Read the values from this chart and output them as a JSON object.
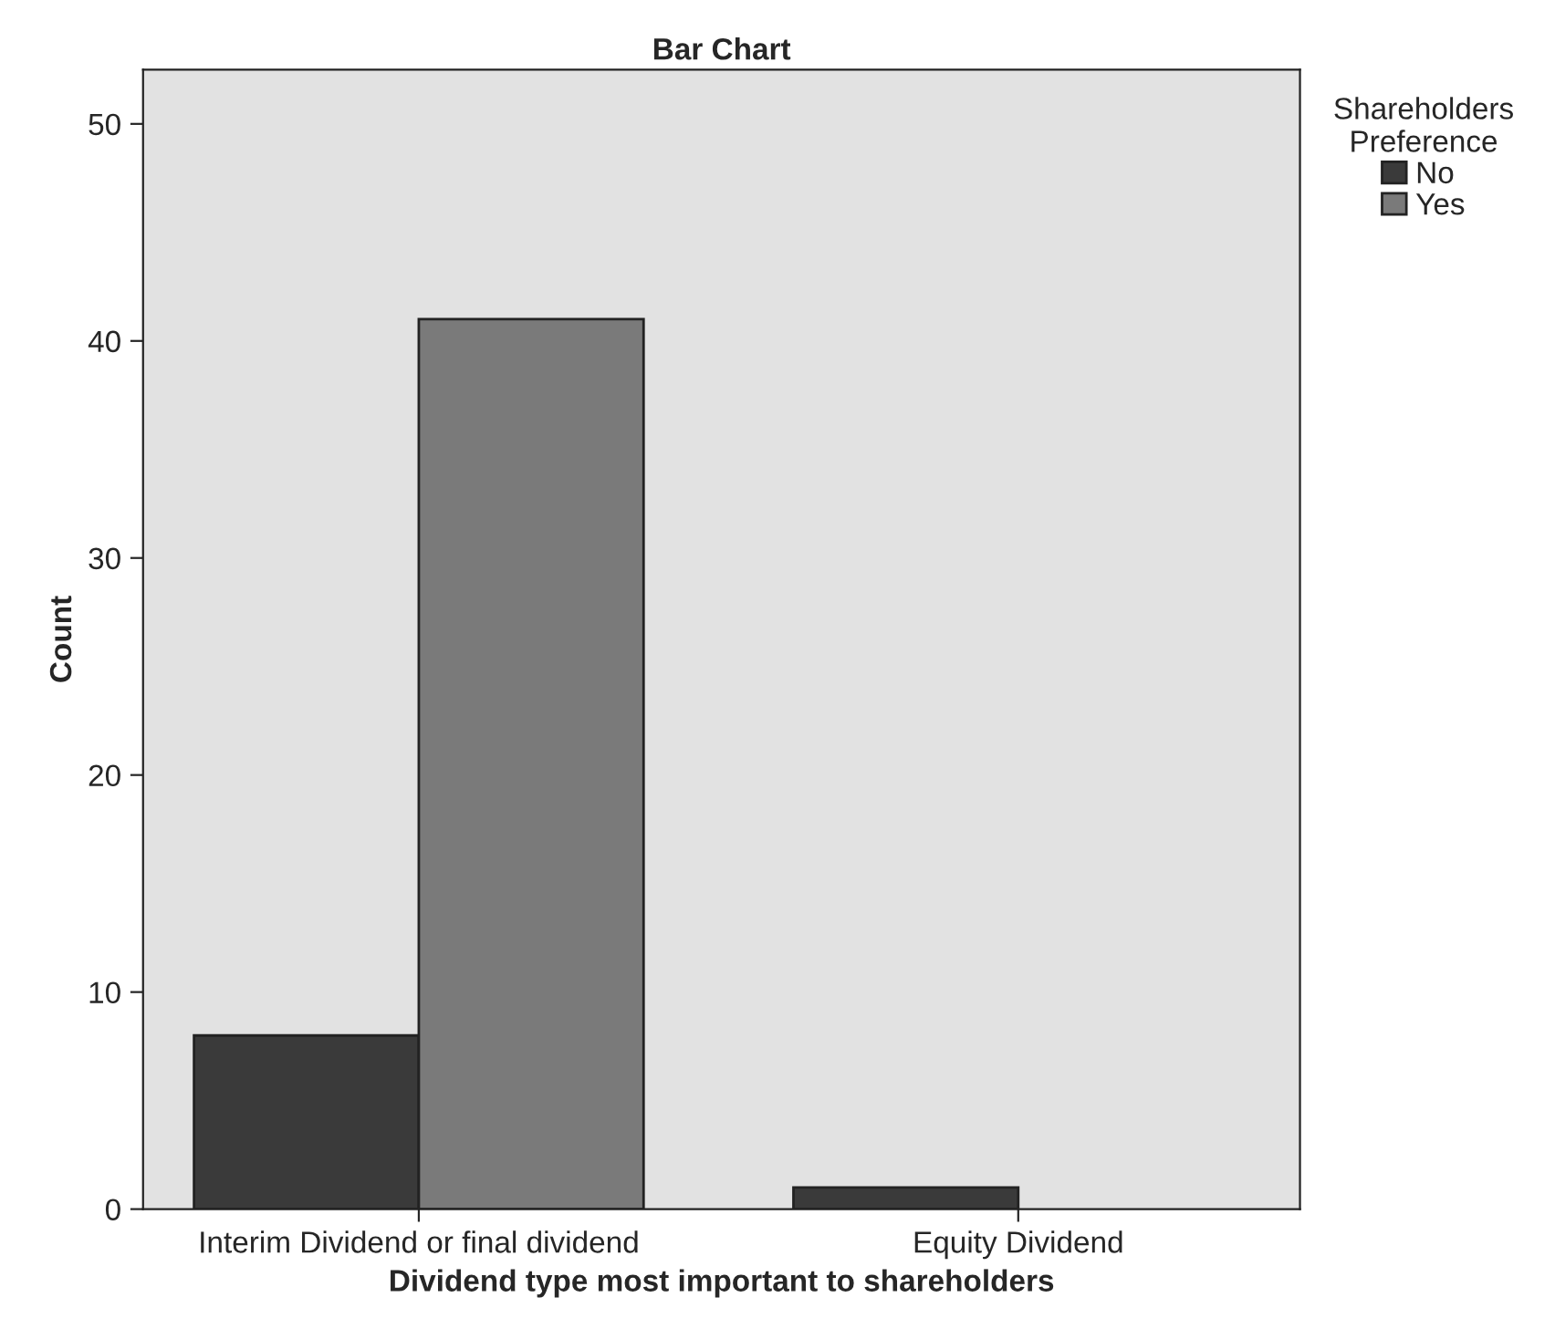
{
  "chart_data": {
    "type": "bar",
    "title": "Bar Chart",
    "xlabel": "Dividend type most important to shareholders",
    "ylabel": "Count",
    "categories": [
      "Interim Dividend or final dividend",
      "Equity Dividend"
    ],
    "series": [
      {
        "name": "No",
        "color": "#3a3a3a",
        "values": [
          8,
          1
        ]
      },
      {
        "name": "Yes",
        "color": "#7a7a7a",
        "values": [
          41,
          null
        ]
      }
    ],
    "legend_title": "Shareholders\nPreference",
    "legend": "top right",
    "ylim": [
      0,
      52.5
    ],
    "yticks": [
      0,
      10,
      20,
      30,
      40,
      50
    ],
    "grid": false
  }
}
